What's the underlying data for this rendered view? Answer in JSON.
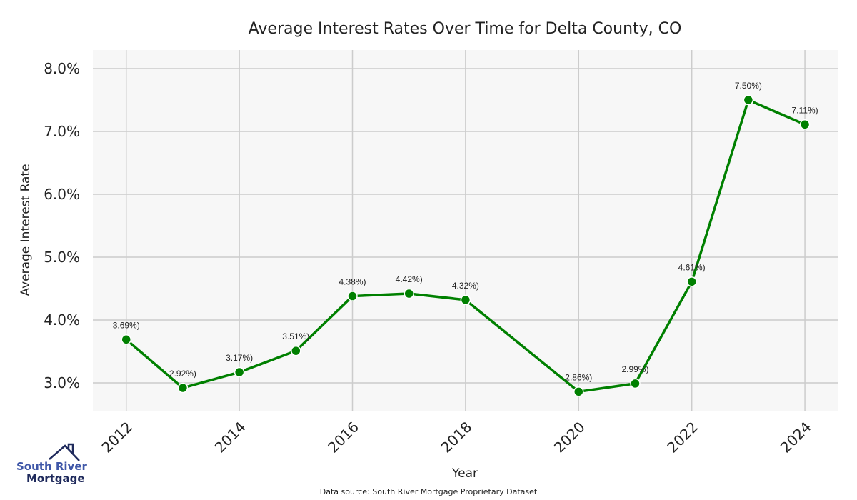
{
  "chart_data": {
    "type": "line",
    "title": "Average Interest Rates Over Time for Delta County, CO",
    "xlabel": "Year",
    "ylabel": "Average Interest Rate",
    "x": [
      2012,
      2013,
      2014,
      2015,
      2016,
      2017,
      2018,
      2020,
      2021,
      2022,
      2023,
      2024
    ],
    "series": [
      {
        "name": "Average Interest Rate",
        "values": [
          3.69,
          2.92,
          3.17,
          3.51,
          4.38,
          4.42,
          4.32,
          2.86,
          2.99,
          4.61,
          7.5,
          7.11
        ],
        "color": "#008000"
      }
    ],
    "data_labels": [
      "3.69%)",
      "2.92%)",
      "3.17%)",
      "3.51%)",
      "4.38%)",
      "4.42%)",
      "4.32%)",
      "2.86%)",
      "2.99%)",
      "4.61%)",
      "7.50%)",
      "7.11%)"
    ],
    "xticks": [
      "2012",
      "2014",
      "2016",
      "2018",
      "2020",
      "2022",
      "2024"
    ],
    "yticks": [
      "3.0%",
      "4.0%",
      "5.0%",
      "6.0%",
      "7.0%",
      "8.0%"
    ],
    "ytick_values": [
      3,
      4,
      5,
      6,
      7,
      8
    ],
    "xlim": [
      2011.41,
      2024.58
    ],
    "ylim": [
      2.557,
      8.295
    ],
    "grid": true,
    "background": "#f7f7f7"
  },
  "source": "Data source: South River Mortgage Proprietary Dataset",
  "logo": {
    "line1": "South River",
    "line2": "Mortgage"
  }
}
